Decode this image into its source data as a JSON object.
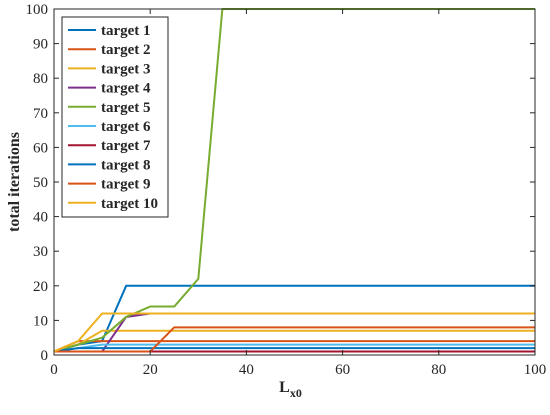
{
  "chart_data": {
    "type": "line",
    "xlabel": "L",
    "xlabel_sub": "x0",
    "ylabel": "total iterations",
    "xlim": [
      0,
      100
    ],
    "ylim": [
      0,
      100
    ],
    "xticks": [
      0,
      20,
      40,
      60,
      80,
      100
    ],
    "yticks": [
      0,
      10,
      20,
      30,
      40,
      50,
      60,
      70,
      80,
      90,
      100
    ],
    "grid": false,
    "legend_position": "top-left",
    "series": [
      {
        "name": "target 1",
        "color": "#0072BD",
        "points": [
          [
            0,
            1
          ],
          [
            5,
            3
          ],
          [
            10,
            4
          ],
          [
            15,
            20
          ],
          [
            100,
            20
          ]
        ]
      },
      {
        "name": "target 2",
        "color": "#D95319",
        "points": [
          [
            0,
            1
          ],
          [
            5,
            4
          ],
          [
            100,
            4
          ]
        ]
      },
      {
        "name": "target 3",
        "color": "#EDB120",
        "points": [
          [
            0,
            1
          ],
          [
            5,
            3
          ],
          [
            10,
            7
          ],
          [
            100,
            7
          ]
        ]
      },
      {
        "name": "target 4",
        "color": "#7E2F8E",
        "points": [
          [
            0,
            1
          ],
          [
            10,
            1
          ],
          [
            15,
            11
          ],
          [
            20,
            12
          ],
          [
            100,
            12
          ]
        ]
      },
      {
        "name": "target 5",
        "color": "#77AC30",
        "points": [
          [
            0,
            1
          ],
          [
            5,
            3
          ],
          [
            10,
            5
          ],
          [
            15,
            11
          ],
          [
            20,
            14
          ],
          [
            25,
            14
          ],
          [
            30,
            22
          ],
          [
            35,
            100
          ],
          [
            100,
            100
          ]
        ]
      },
      {
        "name": "target 6",
        "color": "#4DBEEE",
        "points": [
          [
            0,
            1
          ],
          [
            5,
            2
          ],
          [
            10,
            3
          ],
          [
            100,
            3
          ]
        ]
      },
      {
        "name": "target 7",
        "color": "#A2142F",
        "points": [
          [
            0,
            1
          ],
          [
            100,
            1
          ]
        ]
      },
      {
        "name": "target 8",
        "color": "#0072BD",
        "points": [
          [
            0,
            1
          ],
          [
            5,
            2
          ],
          [
            100,
            2
          ]
        ]
      },
      {
        "name": "target 9",
        "color": "#D95319",
        "points": [
          [
            0,
            1
          ],
          [
            20,
            1
          ],
          [
            25,
            8
          ],
          [
            100,
            8
          ]
        ]
      },
      {
        "name": "target 10",
        "color": "#EDB120",
        "points": [
          [
            0,
            1
          ],
          [
            5,
            4
          ],
          [
            10,
            12
          ],
          [
            100,
            12
          ]
        ]
      }
    ]
  }
}
